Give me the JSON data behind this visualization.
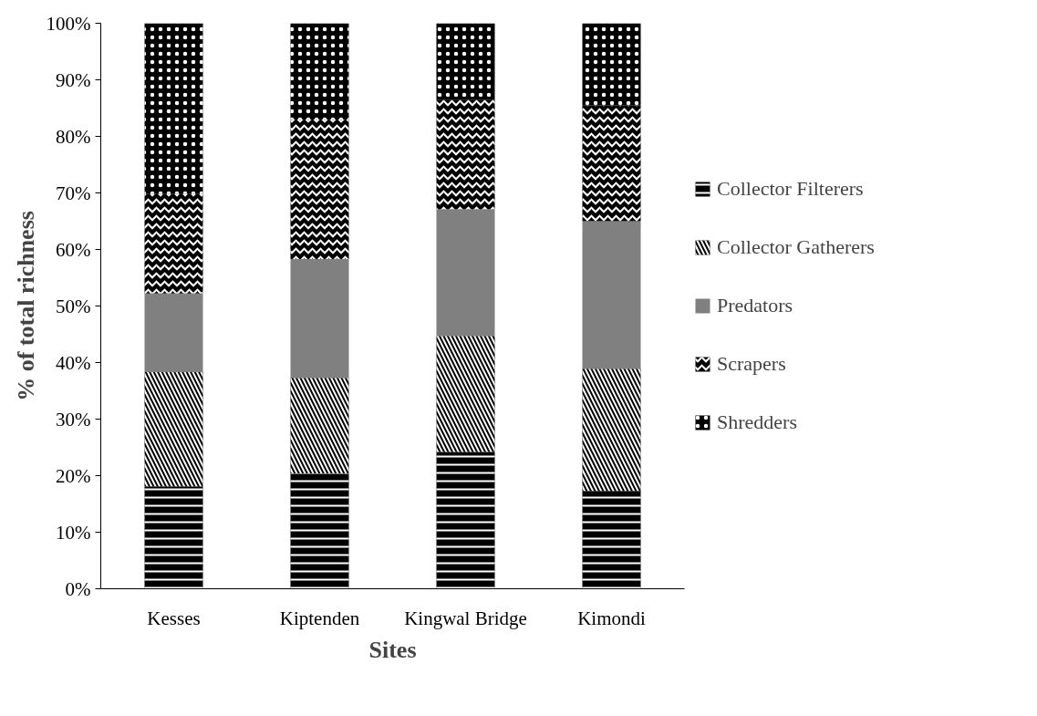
{
  "chart_data": {
    "type": "bar",
    "stacked": true,
    "xlabel": "Sites",
    "ylabel": "% of total richness",
    "categories": [
      "Kesses",
      "Kiptenden",
      "Kingwal Bridge",
      "Kimondi"
    ],
    "series": [
      {
        "name": "Collector Filterers",
        "color": "#000000",
        "values": [
          18.1,
          20.4,
          24.2,
          17.3
        ]
      },
      {
        "name": "Collector Gatherers",
        "color": "#000000",
        "values": [
          20.2,
          16.9,
          20.5,
          21.6
        ]
      },
      {
        "name": "Predators",
        "color": "#808080",
        "values": [
          13.9,
          21.0,
          22.4,
          26.1
        ]
      },
      {
        "name": "Scrapers",
        "color": "#000000",
        "values": [
          17.6,
          24.7,
          19.4,
          20.5
        ]
      },
      {
        "name": "Shredders",
        "color": "#000000",
        "values": [
          30.2,
          17.0,
          13.5,
          14.5
        ]
      }
    ],
    "ylim": [
      0,
      100
    ],
    "yticks": [
      {
        "value": 0,
        "label": "0%"
      },
      {
        "value": 10,
        "label": "10%"
      },
      {
        "value": 20,
        "label": "20%"
      },
      {
        "value": 30,
        "label": "30%"
      },
      {
        "value": 40,
        "label": "40%"
      },
      {
        "value": 50,
        "label": "50%"
      },
      {
        "value": 60,
        "label": "60%"
      },
      {
        "value": 70,
        "label": "70%"
      },
      {
        "value": 80,
        "label": "80%"
      },
      {
        "value": 90,
        "label": "90%"
      },
      {
        "value": 100,
        "label": "100%"
      }
    ],
    "grid": false,
    "legend": "right"
  }
}
